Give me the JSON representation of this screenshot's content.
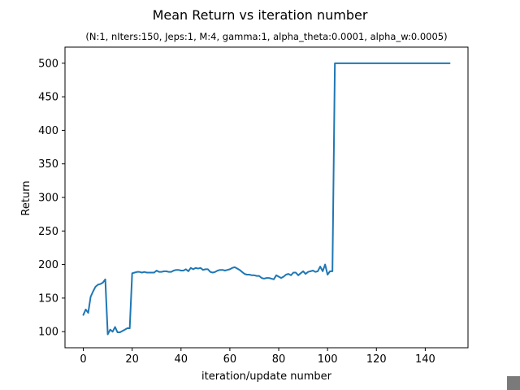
{
  "chart_data": {
    "type": "line",
    "title": "Mean Return vs iteration number",
    "subtitle": "(N:1, nIters:150, Jeps:1, M:4, gamma:1, alpha_theta:0.0001, alpha_w:0.0005)",
    "xlabel": "iteration/update number",
    "ylabel": "Return",
    "xlim": [
      -7.5,
      157.5
    ],
    "ylim": [
      76,
      524
    ],
    "xticks": [
      0,
      20,
      40,
      60,
      80,
      100,
      120,
      140
    ],
    "yticks": [
      100,
      150,
      200,
      250,
      300,
      350,
      400,
      450,
      500
    ],
    "grid": false,
    "legend": "none",
    "line_color": "#1f77b4",
    "series": [
      {
        "x": [
          0,
          1,
          2,
          3,
          4,
          5,
          6,
          7,
          8,
          9,
          10,
          11,
          12,
          13,
          14,
          15,
          16,
          17,
          18,
          19,
          20,
          21,
          22,
          23,
          24,
          25,
          26,
          27,
          28,
          29,
          30,
          31,
          32,
          33,
          34,
          35,
          36,
          37,
          38,
          39,
          40,
          41,
          42,
          43,
          44,
          45,
          46,
          47,
          48,
          49,
          50,
          51,
          52,
          53,
          54,
          55,
          56,
          57,
          58,
          59,
          60,
          61,
          62,
          63,
          64,
          65,
          66,
          67,
          68,
          69,
          70,
          71,
          72,
          73,
          74,
          75,
          76,
          77,
          78,
          79,
          80,
          81,
          82,
          83,
          84,
          85,
          86,
          87,
          88,
          89,
          90,
          91,
          92,
          93,
          94,
          95,
          96,
          97,
          98,
          99,
          100,
          101,
          102,
          103,
          104,
          105,
          106,
          107,
          108,
          109,
          110,
          111,
          112,
          113,
          114,
          115,
          116,
          117,
          118,
          119,
          120,
          121,
          122,
          123,
          124,
          125,
          126,
          127,
          128,
          129,
          130,
          131,
          132,
          133,
          134,
          135,
          136,
          137,
          138,
          139,
          140,
          141,
          142,
          143,
          144,
          145,
          146,
          147,
          148,
          149,
          150
        ],
        "values": [
          125,
          133,
          128,
          152,
          160,
          167,
          170,
          171,
          173,
          178,
          96,
          103,
          100,
          107,
          99,
          99,
          101,
          103,
          105,
          105,
          187,
          188,
          189,
          189,
          188,
          189,
          188,
          188,
          188,
          188,
          191,
          189,
          189,
          190,
          190,
          189,
          189,
          191,
          192,
          192,
          191,
          191,
          193,
          190,
          195,
          193,
          195,
          194,
          195,
          192,
          193,
          193,
          189,
          188,
          189,
          191,
          192,
          192,
          191,
          192,
          193,
          195,
          196,
          194,
          192,
          189,
          186,
          185,
          185,
          184,
          184,
          183,
          183,
          180,
          179,
          180,
          180,
          179,
          178,
          184,
          182,
          180,
          182,
          185,
          186,
          184,
          188,
          188,
          184,
          187,
          190,
          186,
          189,
          190,
          191,
          189,
          190,
          197,
          190,
          200,
          185,
          190,
          190,
          500,
          500,
          500,
          500,
          500,
          500,
          500,
          500,
          500,
          500,
          500,
          500,
          500,
          500,
          500,
          500,
          500,
          500,
          500,
          500,
          500,
          500,
          500,
          500,
          500,
          500,
          500,
          500,
          500,
          500,
          500,
          500,
          500,
          500,
          500,
          500,
          500,
          500,
          500,
          500,
          500,
          500,
          500,
          500,
          500,
          500,
          500,
          500
        ]
      }
    ]
  }
}
